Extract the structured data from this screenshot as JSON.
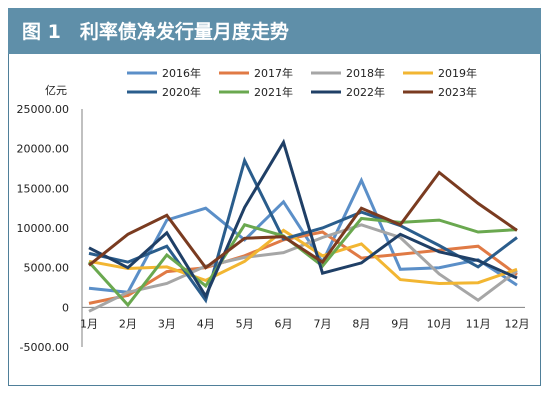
{
  "figure": {
    "title": "图 1　利率债净发行量月度走势"
  },
  "colors": {
    "header_bg": "#5f8fa9",
    "border": "#4f7f99",
    "axis": "#808080",
    "grid": "#d9d9d9"
  },
  "chart_data": {
    "type": "line",
    "unit_label": "亿元",
    "categories": [
      "1月",
      "2月",
      "3月",
      "4月",
      "5月",
      "6月",
      "7月",
      "8月",
      "9月",
      "10月",
      "11月",
      "12月"
    ],
    "ylim": [
      -5000,
      25000
    ],
    "yticks": [
      "-5000.00",
      "0",
      "5000.00",
      "10000.00",
      "15000.00",
      "20000.00",
      "25000.00"
    ],
    "ytick_values": [
      -5000,
      0,
      5000,
      10000,
      15000,
      20000,
      25000
    ],
    "grid": false,
    "legend_position": "top",
    "series": [
      {
        "name": "2016年",
        "color": "#5b8fc8",
        "values": [
          2400,
          1900,
          11000,
          12500,
          8500,
          13300,
          5700,
          16000,
          4800,
          5000,
          6000,
          2800
        ]
      },
      {
        "name": "2017年",
        "color": "#e07a45",
        "values": [
          500,
          1500,
          4500,
          5000,
          6500,
          8500,
          9500,
          6200,
          6700,
          7200,
          7700,
          4100
        ]
      },
      {
        "name": "2018年",
        "color": "#a6a6a6",
        "values": [
          -500,
          1900,
          3000,
          5200,
          6300,
          6900,
          8800,
          10400,
          8800,
          4200,
          900,
          4600
        ]
      },
      {
        "name": "2019年",
        "color": "#f2b632",
        "values": [
          5800,
          4900,
          5100,
          3400,
          5800,
          9700,
          6500,
          8000,
          3500,
          3000,
          3100,
          4800
        ]
      },
      {
        "name": "2020年",
        "color": "#2a5d8c",
        "values": [
          6800,
          5700,
          7700,
          900,
          18500,
          8600,
          10000,
          12000,
          10300,
          7800,
          5100,
          8800
        ]
      },
      {
        "name": "2021年",
        "color": "#6aa84f",
        "values": [
          5700,
          300,
          6600,
          2700,
          10400,
          9000,
          5200,
          11200,
          10700,
          11000,
          9500,
          9800
        ]
      },
      {
        "name": "2022年",
        "color": "#1f3f66",
        "values": [
          7500,
          5000,
          9400,
          1400,
          12600,
          20800,
          4300,
          5600,
          9200,
          7000,
          5900,
          3700
        ]
      },
      {
        "name": "2023年",
        "color": "#7a3b20",
        "values": [
          5300,
          9200,
          11600,
          5000,
          8700,
          8900,
          5700,
          12500,
          10400,
          17000,
          13100,
          9700
        ]
      }
    ]
  }
}
